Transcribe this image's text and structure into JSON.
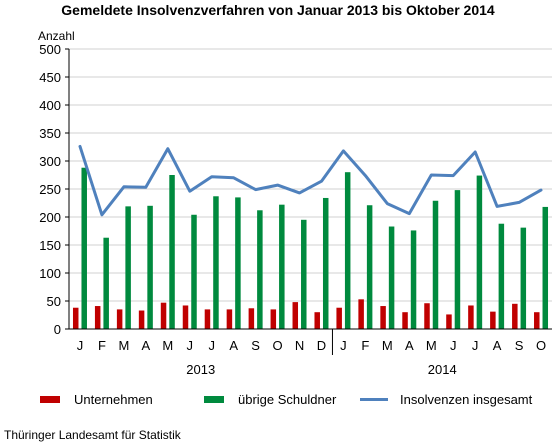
{
  "chart_data": {
    "type": "bar",
    "title": "Gemeldete Insolvenzverfahren von Januar 2013 bis Oktober 2014",
    "ylabel": "Anzahl",
    "ylim": [
      0,
      500
    ],
    "yticks": [
      0,
      50,
      100,
      150,
      200,
      250,
      300,
      350,
      400,
      450,
      500
    ],
    "categories": [
      "J",
      "F",
      "M",
      "A",
      "M",
      "J",
      "J",
      "A",
      "S",
      "O",
      "N",
      "D",
      "J",
      "F",
      "M",
      "A",
      "M",
      "J",
      "J",
      "A",
      "S",
      "O"
    ],
    "year_labels": [
      {
        "label": "2013",
        "months": 12
      },
      {
        "label": "2014",
        "months": 10
      }
    ],
    "series": [
      {
        "name": "Unternehmen",
        "kind": "bar",
        "color": "#c00000",
        "values": [
          38,
          41,
          35,
          33,
          47,
          42,
          35,
          35,
          37,
          35,
          48,
          30,
          38,
          53,
          41,
          30,
          46,
          26,
          42,
          31,
          45,
          30
        ]
      },
      {
        "name": "übrige Schuldner",
        "kind": "bar",
        "color": "#008a3e",
        "values": [
          288,
          163,
          219,
          220,
          275,
          204,
          237,
          235,
          212,
          222,
          195,
          234,
          280,
          221,
          183,
          176,
          229,
          248,
          274,
          188,
          181,
          218
        ]
      },
      {
        "name": "Insolvenzen insgesamt",
        "kind": "line",
        "color": "#4f81bd",
        "values": [
          326,
          204,
          254,
          253,
          322,
          246,
          272,
          270,
          249,
          257,
          243,
          264,
          318,
          274,
          224,
          206,
          275,
          274,
          316,
          219,
          226,
          248
        ]
      }
    ],
    "grid": true,
    "legend_position": "bottom"
  },
  "source": "Thüringer Landesamt für Statistik"
}
